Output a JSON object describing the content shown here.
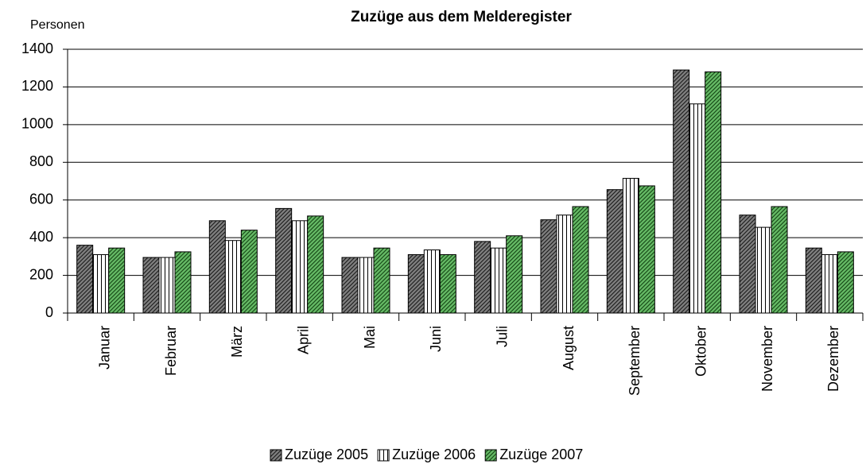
{
  "chart_data": {
    "type": "bar",
    "title": "Zuzüge aus dem Melderegister",
    "y_label": "Personen",
    "categories": [
      "Januar",
      "Februar",
      "März",
      "April",
      "Mai",
      "Juni",
      "Juli",
      "August",
      "September",
      "Oktober",
      "November",
      "Dezember"
    ],
    "series": [
      {
        "name": "Zuzüge 2005",
        "color": "#808080",
        "values": [
          360,
          295,
          490,
          555,
          295,
          310,
          380,
          495,
          655,
          1290,
          520,
          345
        ]
      },
      {
        "name": "Zuzüge 2006",
        "color": "#ffffff",
        "values": [
          310,
          295,
          385,
          490,
          295,
          335,
          345,
          520,
          715,
          1110,
          455,
          310
        ]
      },
      {
        "name": "Zuzüge 2007",
        "color": "#66bb66",
        "values": [
          345,
          325,
          440,
          515,
          345,
          310,
          410,
          565,
          675,
          1280,
          565,
          325
        ]
      }
    ],
    "ylim": [
      0,
      1400
    ],
    "yticks": [
      0,
      200,
      400,
      600,
      800,
      1000,
      1200,
      1400
    ],
    "grid": true,
    "legend": "bottom"
  }
}
